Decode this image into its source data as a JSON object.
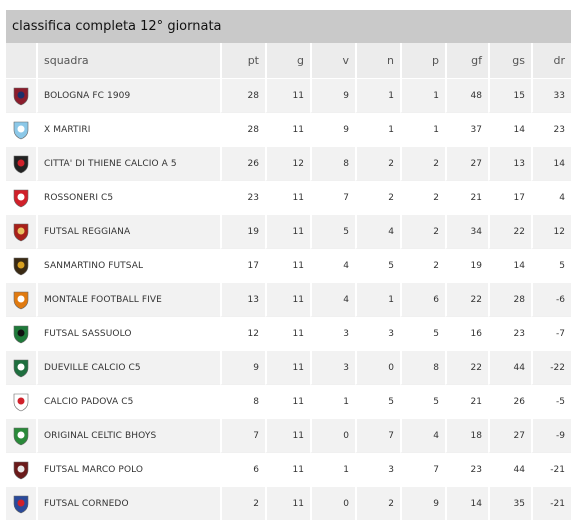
{
  "title": "classifica completa 12° giornata",
  "headers": {
    "team": "squadra",
    "pt": "pt",
    "g": "g",
    "v": "v",
    "n": "n",
    "p": "p",
    "gf": "gf",
    "gs": "gs",
    "dr": "dr"
  },
  "rows": [
    {
      "team": "BOLOGNA FC 1909",
      "pt": "28",
      "g": "11",
      "v": "9",
      "n": "1",
      "p": "1",
      "gf": "48",
      "gs": "15",
      "dr": "33",
      "crest_color": "#8b1c2c",
      "crest_accent": "#1c2f6b"
    },
    {
      "team": "X MARTIRI",
      "pt": "28",
      "g": "11",
      "v": "9",
      "n": "1",
      "p": "1",
      "gf": "37",
      "gs": "14",
      "dr": "23",
      "crest_color": "#8cc8e8",
      "crest_accent": "#ffffff"
    },
    {
      "team": "CITTA' DI THIENE CALCIO A 5",
      "pt": "26",
      "g": "12",
      "v": "8",
      "n": "2",
      "p": "2",
      "gf": "27",
      "gs": "13",
      "dr": "14",
      "crest_color": "#222222",
      "crest_accent": "#d0202a"
    },
    {
      "team": "ROSSONERI C5",
      "pt": "23",
      "g": "11",
      "v": "7",
      "n": "2",
      "p": "2",
      "gf": "21",
      "gs": "17",
      "dr": "4",
      "crest_color": "#d0202a",
      "crest_accent": "#ffffff"
    },
    {
      "team": "FUTSAL REGGIANA",
      "pt": "19",
      "g": "11",
      "v": "5",
      "n": "4",
      "p": "2",
      "gf": "34",
      "gs": "22",
      "dr": "12",
      "crest_color": "#a8201a",
      "crest_accent": "#e8c060"
    },
    {
      "team": "SANMARTINO FUTSAL",
      "pt": "17",
      "g": "11",
      "v": "4",
      "n": "5",
      "p": "2",
      "gf": "19",
      "gs": "14",
      "dr": "5",
      "crest_color": "#3a2a14",
      "crest_accent": "#d8a020"
    },
    {
      "team": "MONTALE FOOTBALL FIVE",
      "pt": "13",
      "g": "11",
      "v": "4",
      "n": "1",
      "p": "6",
      "gf": "22",
      "gs": "28",
      "dr": "-6",
      "crest_color": "#e07a10",
      "crest_accent": "#ffffff"
    },
    {
      "team": "FUTSAL SASSUOLO",
      "pt": "12",
      "g": "11",
      "v": "3",
      "n": "3",
      "p": "5",
      "gf": "16",
      "gs": "23",
      "dr": "-7",
      "crest_color": "#1f7a3a",
      "crest_accent": "#111111"
    },
    {
      "team": "DUEVILLE CALCIO C5",
      "pt": "9",
      "g": "11",
      "v": "3",
      "n": "0",
      "p": "8",
      "gf": "22",
      "gs": "44",
      "dr": "-22",
      "crest_color": "#1e6e3e",
      "crest_accent": "#ffffff"
    },
    {
      "team": "CALCIO PADOVA C5",
      "pt": "8",
      "g": "11",
      "v": "1",
      "n": "5",
      "p": "5",
      "gf": "21",
      "gs": "26",
      "dr": "-5",
      "crest_color": "#ffffff",
      "crest_accent": "#d0202a"
    },
    {
      "team": "ORIGINAL CELTIC BHOYS",
      "pt": "7",
      "g": "11",
      "v": "0",
      "n": "7",
      "p": "4",
      "gf": "18",
      "gs": "27",
      "dr": "-9",
      "crest_color": "#2a8a3a",
      "crest_accent": "#ffffff"
    },
    {
      "team": "FUTSAL MARCO POLO",
      "pt": "6",
      "g": "11",
      "v": "1",
      "n": "3",
      "p": "7",
      "gf": "23",
      "gs": "44",
      "dr": "-21",
      "crest_color": "#6a1a1a",
      "crest_accent": "#e8e8e8"
    },
    {
      "team": "FUTSAL CORNEDO",
      "pt": "2",
      "g": "11",
      "v": "0",
      "n": "2",
      "p": "9",
      "gf": "14",
      "gs": "35",
      "dr": "-21",
      "crest_color": "#2a4a9a",
      "crest_accent": "#d0202a"
    }
  ]
}
